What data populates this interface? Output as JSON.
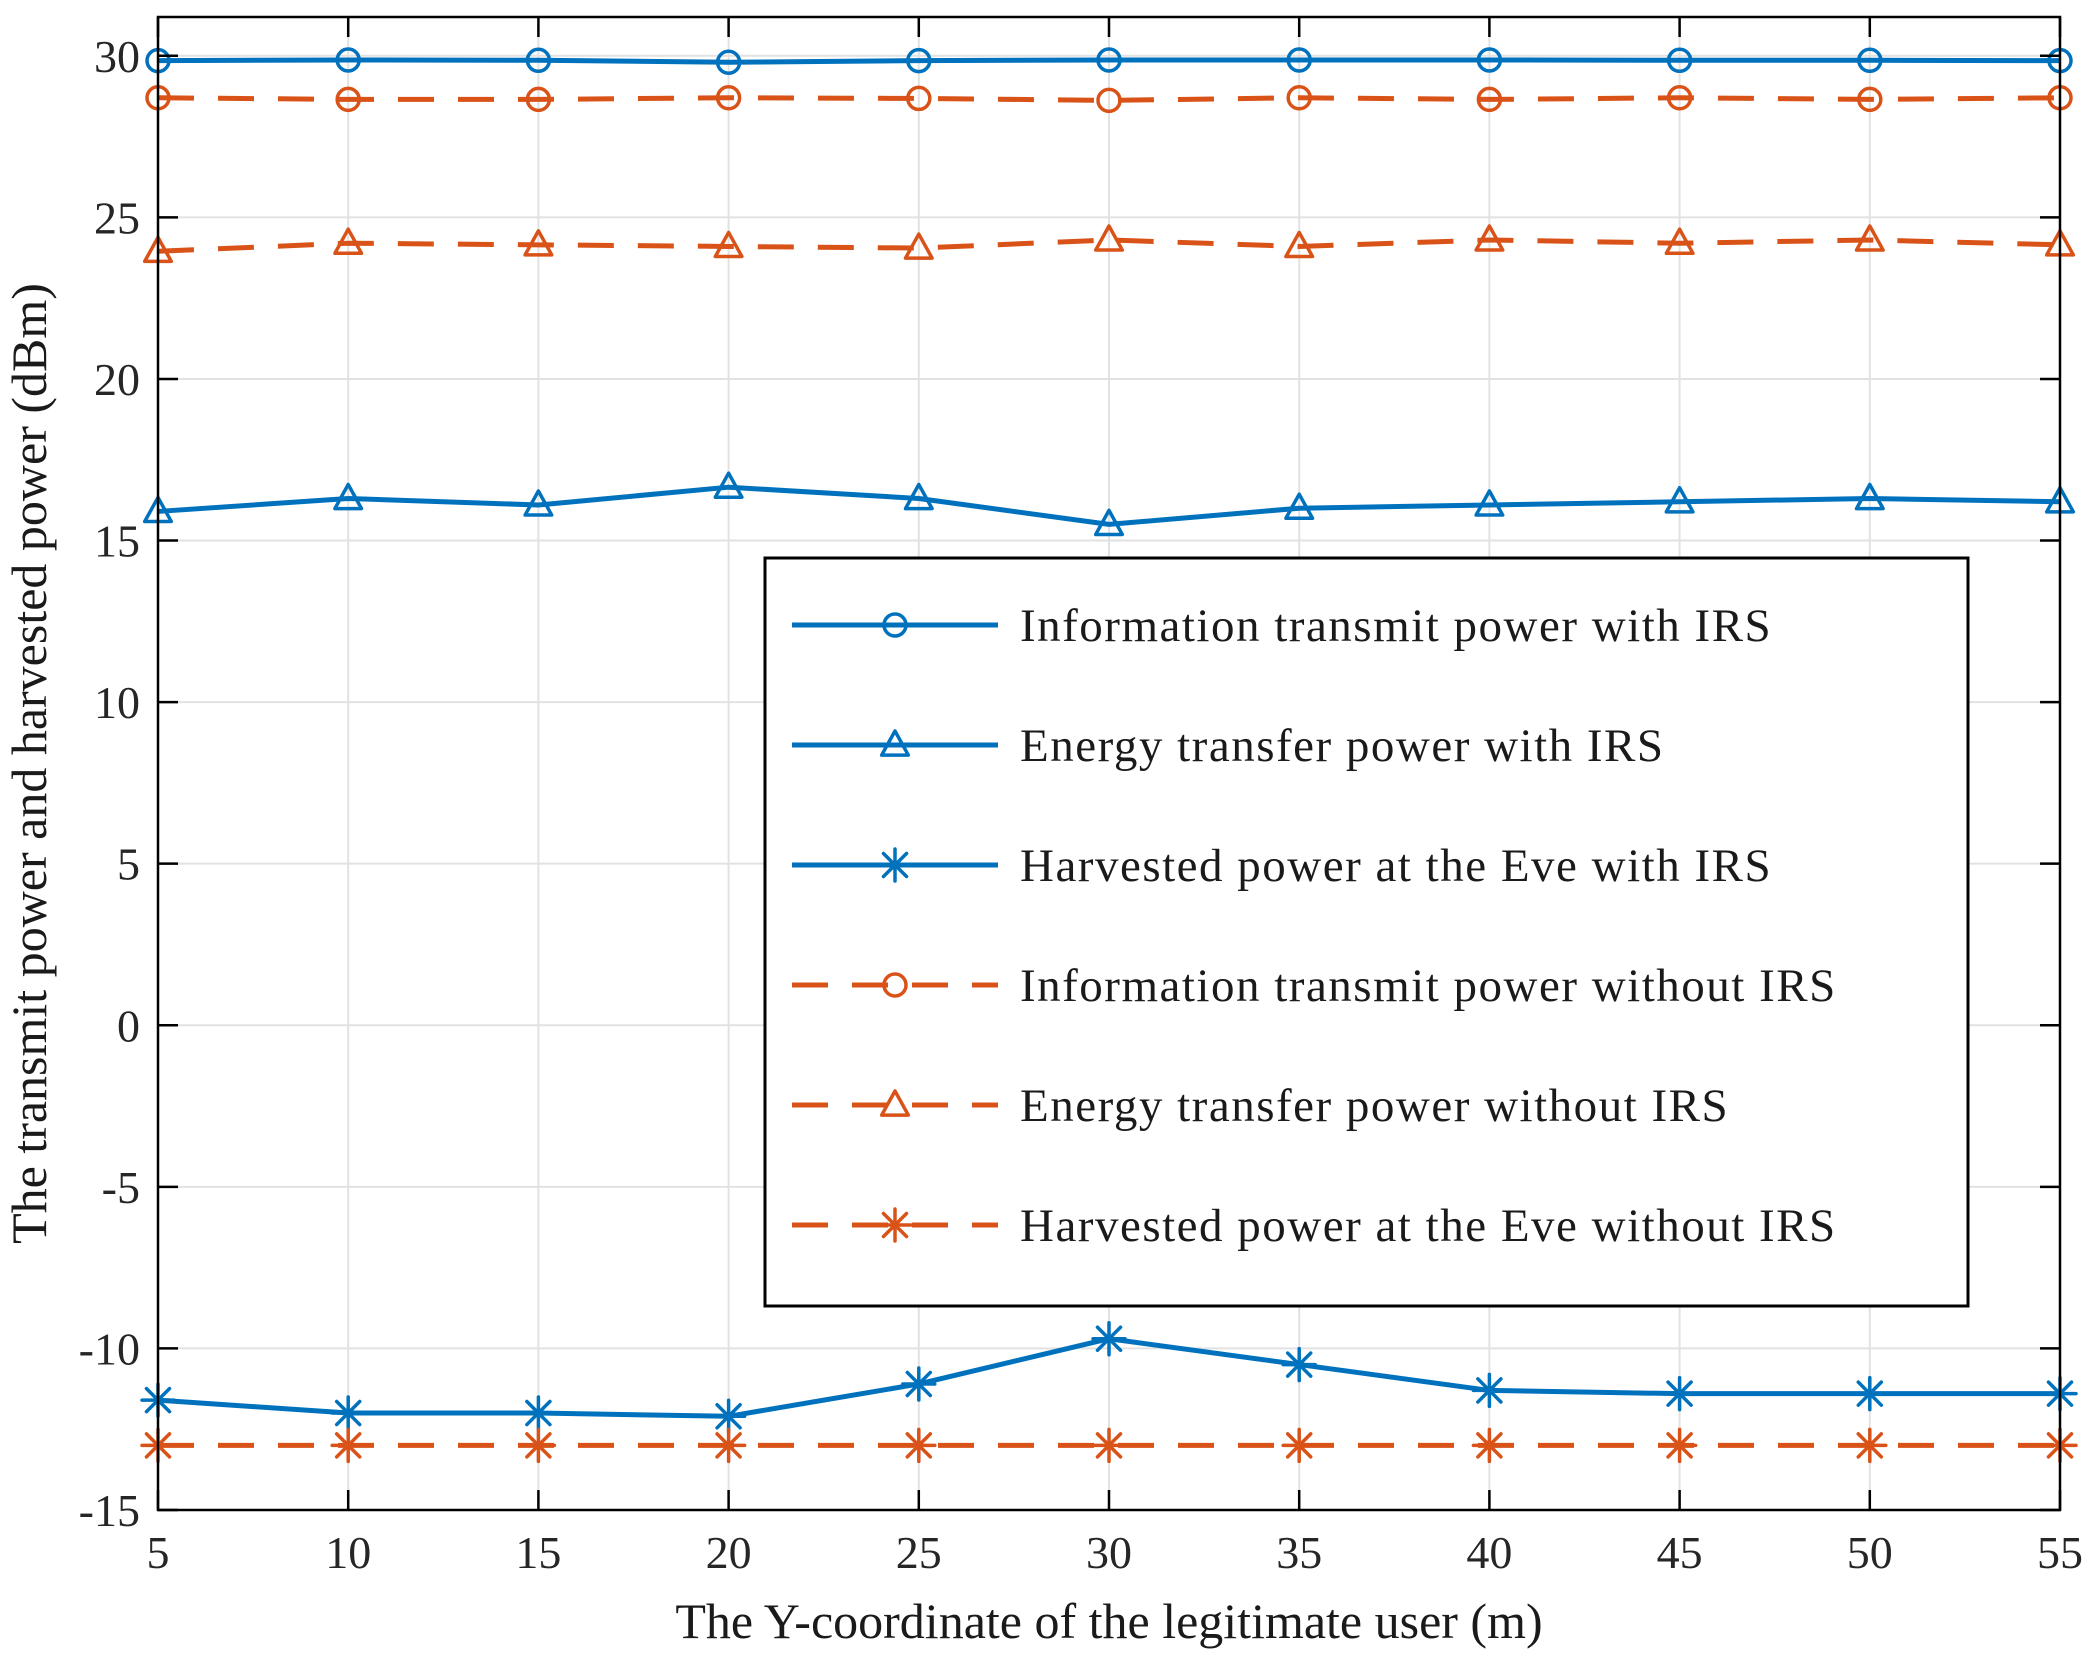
{
  "figure": {
    "background": "#ffffff",
    "axis_color": "#000000",
    "tick_label_color": "#262626",
    "grid_color": "#e2e2e2",
    "blue": "#0072BD",
    "orange": "#D95319"
  },
  "chart_data": {
    "type": "line",
    "title": "",
    "xlabel": "The Y-coordinate of the legitimate user (m)",
    "ylabel": "The transmit power and harvested power (dBm)",
    "xlim": [
      5,
      55
    ],
    "ylim": [
      -15,
      31.2
    ],
    "xticks": [
      5,
      10,
      15,
      20,
      25,
      30,
      35,
      40,
      45,
      50,
      55
    ],
    "yticks": [
      -15,
      -10,
      -5,
      0,
      5,
      10,
      15,
      20,
      25,
      30
    ],
    "grid": true,
    "legend_position": "center",
    "x": [
      5,
      10,
      15,
      20,
      25,
      30,
      35,
      40,
      45,
      50,
      55
    ],
    "series": [
      {
        "name": "Information transmit power with IRS",
        "color": "#0072BD",
        "line": "solid",
        "marker": "circle",
        "values": [
          29.85,
          29.87,
          29.86,
          29.8,
          29.85,
          29.87,
          29.87,
          29.87,
          29.86,
          29.86,
          29.85
        ]
      },
      {
        "name": "Energy transfer power with IRS",
        "color": "#0072BD",
        "line": "solid",
        "marker": "triangle",
        "values": [
          15.9,
          16.3,
          16.1,
          16.65,
          16.3,
          15.5,
          16.0,
          16.1,
          16.2,
          16.3,
          16.2
        ]
      },
      {
        "name": "Harvested power at the Eve with IRS",
        "color": "#0072BD",
        "line": "solid",
        "marker": "asterisk",
        "values": [
          -11.6,
          -12.0,
          -12.0,
          -12.1,
          -11.1,
          -9.7,
          -10.5,
          -11.3,
          -11.4,
          -11.4,
          -11.4
        ]
      },
      {
        "name": "Information transmit power without IRS",
        "color": "#D95319",
        "line": "dashed",
        "marker": "circle",
        "values": [
          28.7,
          28.65,
          28.65,
          28.7,
          28.68,
          28.62,
          28.7,
          28.65,
          28.7,
          28.65,
          28.7
        ]
      },
      {
        "name": "Energy transfer power without IRS",
        "color": "#D95319",
        "line": "dashed",
        "marker": "triangle",
        "values": [
          23.95,
          24.2,
          24.15,
          24.1,
          24.05,
          24.3,
          24.1,
          24.3,
          24.2,
          24.3,
          24.15
        ]
      },
      {
        "name": "Harvested power at the Eve without IRS",
        "color": "#D95319",
        "line": "dashed",
        "marker": "asterisk",
        "values": [
          -13.0,
          -13.0,
          -13.0,
          -13.0,
          -13.0,
          -13.0,
          -13.0,
          -13.0,
          -13.0,
          -13.0,
          -13.0
        ]
      }
    ]
  }
}
